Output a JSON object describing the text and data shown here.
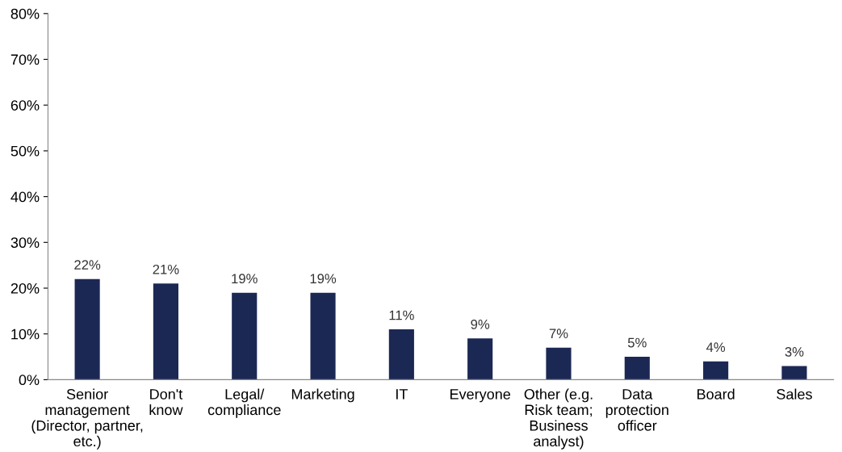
{
  "chart_data": {
    "type": "bar",
    "categories": [
      "Senior\nmanagement\n(Director, partner,\netc.)",
      "Don't\nknow",
      "Legal/\ncompliance",
      "Marketing",
      "IT",
      "Everyone",
      "Other (e.g.\nRisk team;\nBusiness\nanalyst)",
      "Data\nprotection\nofficer",
      "Board",
      "Sales"
    ],
    "values": [
      22,
      21,
      19,
      19,
      11,
      9,
      7,
      5,
      4,
      3
    ],
    "value_labels": [
      "22%",
      "21%",
      "19%",
      "19%",
      "11%",
      "9%",
      "7%",
      "5%",
      "4%",
      "3%"
    ],
    "color": "#1c2854",
    "ylim": [
      0,
      80
    ],
    "yticks": [
      {
        "value": 0,
        "label": "0%"
      },
      {
        "value": 10,
        "label": "10%"
      },
      {
        "value": 20,
        "label": "20%"
      },
      {
        "value": 30,
        "label": "30%"
      },
      {
        "value": 40,
        "label": "40%"
      },
      {
        "value": 50,
        "label": "50%"
      },
      {
        "value": 60,
        "label": "60%"
      },
      {
        "value": 70,
        "label": "70%"
      },
      {
        "value": 80,
        "label": "80%"
      }
    ],
    "grid": false,
    "legend": false
  }
}
